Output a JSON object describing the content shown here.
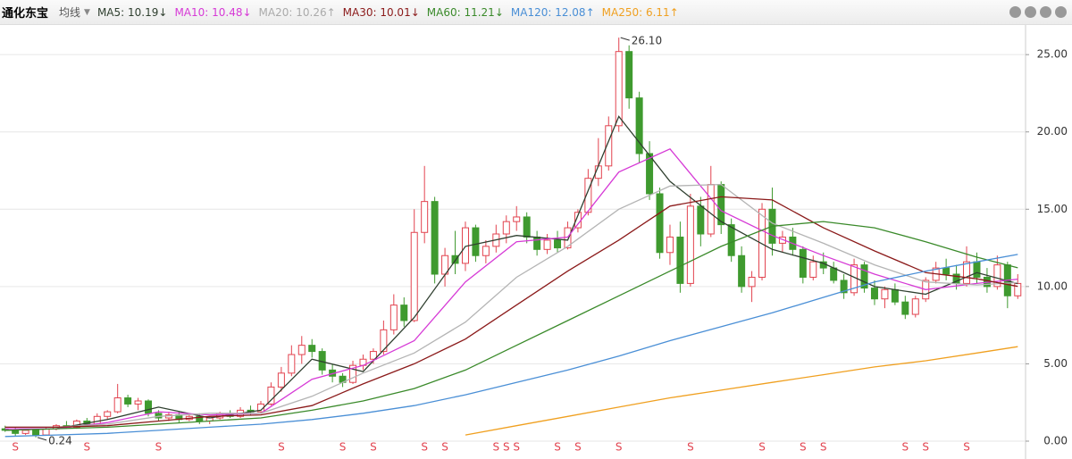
{
  "chart_data": {
    "type": "candlestick",
    "title": "通化东宝",
    "indicator": "均线",
    "ylim": [
      0,
      26.8
    ],
    "yticks": [
      {
        "value": 0,
        "label": "0.00"
      },
      {
        "value": 5,
        "label": "5.00"
      },
      {
        "value": 10,
        "label": "10.00"
      },
      {
        "value": 15,
        "label": "15.00"
      },
      {
        "value": 20,
        "label": "20.00"
      },
      {
        "value": 25,
        "label": "25.00"
      }
    ],
    "grid": true,
    "up_color": "#e2434f",
    "down_color": "#3f9a2f",
    "candles": [
      [
        0.8,
        1.0,
        0.6,
        0.7
      ],
      [
        0.7,
        0.9,
        0.3,
        0.5
      ],
      [
        0.5,
        0.8,
        0.4,
        0.7
      ],
      [
        0.7,
        0.8,
        0.24,
        0.4
      ],
      [
        0.4,
        0.9,
        0.4,
        0.8
      ],
      [
        0.8,
        1.1,
        0.7,
        1.0
      ],
      [
        1.0,
        1.3,
        0.8,
        0.9
      ],
      [
        0.9,
        1.4,
        0.8,
        1.3
      ],
      [
        1.3,
        1.5,
        1.0,
        1.1
      ],
      [
        1.1,
        1.8,
        1.0,
        1.6
      ],
      [
        1.6,
        2.0,
        1.4,
        1.9
      ],
      [
        1.9,
        3.7,
        1.8,
        2.8
      ],
      [
        2.8,
        3.0,
        2.2,
        2.4
      ],
      [
        2.4,
        2.8,
        2.0,
        2.6
      ],
      [
        2.6,
        2.7,
        1.6,
        1.8
      ],
      [
        1.8,
        2.0,
        1.3,
        1.5
      ],
      [
        1.5,
        1.9,
        1.3,
        1.7
      ],
      [
        1.7,
        1.9,
        1.2,
        1.4
      ],
      [
        1.4,
        1.8,
        1.3,
        1.6
      ],
      [
        1.6,
        1.8,
        1.1,
        1.3
      ],
      [
        1.3,
        1.6,
        1.1,
        1.5
      ],
      [
        1.5,
        1.9,
        1.4,
        1.8
      ],
      [
        1.8,
        2.0,
        1.5,
        1.6
      ],
      [
        1.6,
        2.2,
        1.5,
        2.0
      ],
      [
        2.0,
        2.3,
        1.7,
        1.9
      ],
      [
        1.9,
        2.6,
        1.8,
        2.4
      ],
      [
        2.4,
        3.8,
        2.3,
        3.5
      ],
      [
        3.5,
        4.8,
        3.2,
        4.4
      ],
      [
        4.4,
        6.2,
        4.2,
        5.6
      ],
      [
        5.6,
        6.8,
        5.0,
        6.2
      ],
      [
        6.2,
        6.6,
        5.4,
        5.8
      ],
      [
        5.8,
        6.0,
        4.3,
        4.6
      ],
      [
        4.6,
        5.0,
        3.8,
        4.2
      ],
      [
        4.2,
        4.4,
        3.5,
        3.8
      ],
      [
        3.8,
        5.2,
        3.7,
        4.9
      ],
      [
        4.9,
        5.6,
        4.6,
        5.3
      ],
      [
        5.3,
        6.0,
        5.0,
        5.8
      ],
      [
        5.8,
        7.8,
        5.6,
        7.2
      ],
      [
        7.2,
        9.5,
        6.9,
        8.8
      ],
      [
        8.8,
        9.3,
        7.4,
        7.8
      ],
      [
        7.8,
        15.0,
        7.7,
        13.5
      ],
      [
        13.5,
        17.8,
        12.8,
        15.5
      ],
      [
        15.5,
        15.8,
        10.2,
        10.8
      ],
      [
        10.8,
        12.5,
        10.0,
        12.0
      ],
      [
        12.0,
        13.6,
        10.8,
        11.5
      ],
      [
        11.5,
        14.2,
        11.0,
        13.8
      ],
      [
        13.8,
        14.0,
        11.6,
        12.0
      ],
      [
        12.0,
        13.0,
        11.5,
        12.6
      ],
      [
        12.6,
        14.0,
        12.2,
        13.4
      ],
      [
        13.4,
        14.6,
        12.8,
        14.2
      ],
      [
        14.2,
        15.2,
        13.6,
        14.5
      ],
      [
        14.5,
        14.8,
        12.8,
        13.2
      ],
      [
        13.2,
        13.6,
        12.0,
        12.4
      ],
      [
        12.4,
        13.4,
        12.1,
        13.0
      ],
      [
        13.0,
        13.6,
        12.2,
        12.5
      ],
      [
        12.5,
        14.2,
        12.4,
        13.8
      ],
      [
        13.8,
        15.0,
        13.5,
        14.8
      ],
      [
        14.8,
        17.6,
        14.6,
        17.0
      ],
      [
        17.0,
        19.6,
        16.5,
        17.8
      ],
      [
        17.8,
        21.0,
        17.5,
        20.4
      ],
      [
        20.4,
        26.1,
        20.0,
        25.2
      ],
      [
        25.2,
        25.6,
        21.5,
        22.2
      ],
      [
        22.2,
        22.6,
        18.0,
        18.6
      ],
      [
        18.6,
        19.4,
        15.6,
        16.0
      ],
      [
        16.0,
        16.4,
        11.8,
        12.2
      ],
      [
        12.2,
        14.0,
        11.4,
        13.2
      ],
      [
        13.2,
        14.2,
        9.6,
        10.2
      ],
      [
        10.2,
        16.0,
        10.0,
        15.2
      ],
      [
        15.2,
        15.8,
        12.6,
        13.4
      ],
      [
        13.4,
        17.8,
        13.2,
        16.6
      ],
      [
        16.6,
        16.8,
        13.4,
        14.0
      ],
      [
        14.0,
        14.4,
        11.6,
        12.0
      ],
      [
        12.0,
        12.6,
        9.6,
        10.0
      ],
      [
        10.0,
        11.0,
        9.0,
        10.6
      ],
      [
        10.6,
        15.4,
        10.4,
        15.0
      ],
      [
        15.0,
        16.4,
        12.0,
        12.8
      ],
      [
        12.8,
        13.6,
        12.2,
        13.2
      ],
      [
        13.2,
        13.8,
        12.0,
        12.4
      ],
      [
        12.4,
        12.6,
        10.2,
        10.6
      ],
      [
        10.6,
        12.0,
        10.4,
        11.6
      ],
      [
        11.6,
        12.2,
        10.8,
        11.2
      ],
      [
        11.2,
        11.6,
        10.2,
        10.4
      ],
      [
        10.4,
        10.8,
        9.2,
        9.6
      ],
      [
        9.6,
        11.8,
        9.4,
        11.4
      ],
      [
        11.4,
        11.6,
        9.6,
        9.9
      ],
      [
        9.9,
        10.4,
        8.8,
        9.2
      ],
      [
        9.2,
        10.0,
        8.6,
        9.8
      ],
      [
        9.8,
        10.2,
        8.8,
        9.0
      ],
      [
        9.0,
        9.4,
        7.9,
        8.2
      ],
      [
        8.2,
        9.4,
        8.0,
        9.2
      ],
      [
        9.2,
        10.6,
        9.0,
        10.4
      ],
      [
        10.4,
        11.6,
        10.2,
        11.2
      ],
      [
        11.2,
        11.8,
        10.4,
        10.8
      ],
      [
        10.8,
        11.4,
        9.8,
        10.2
      ],
      [
        10.2,
        12.6,
        10.0,
        11.6
      ],
      [
        11.6,
        12.2,
        10.2,
        10.6
      ],
      [
        10.6,
        11.2,
        9.6,
        10.0
      ],
      [
        10.0,
        12.0,
        9.8,
        11.4
      ],
      [
        11.4,
        11.6,
        8.6,
        9.4
      ],
      [
        9.4,
        10.8,
        9.2,
        10.2
      ]
    ],
    "x": [
      0,
      5,
      10,
      15,
      20,
      25,
      30,
      35,
      40,
      45,
      50,
      55,
      60,
      65,
      70,
      75,
      80,
      85,
      90,
      95,
      99
    ],
    "series": [
      {
        "name": "MA5",
        "legend_label": "MA5: 10.19",
        "arrow": "↓",
        "color": "#2f3f2f",
        "values": [
          0.7,
          0.8,
          1.4,
          2.2,
          1.5,
          2.0,
          5.3,
          4.5,
          8.0,
          12.6,
          13.3,
          13.0,
          21.0,
          16.8,
          14.2,
          12.4,
          11.5,
          10.0,
          9.5,
          10.9,
          10.19
        ]
      },
      {
        "name": "MA10",
        "legend_label": "MA10: 10.48",
        "arrow": "↓",
        "color": "#d63ad6",
        "values": [
          0.8,
          0.8,
          1.2,
          1.9,
          1.7,
          1.8,
          4.0,
          4.9,
          6.5,
          10.3,
          12.9,
          13.2,
          17.4,
          18.9,
          14.9,
          13.3,
          12.0,
          10.8,
          9.8,
          10.2,
          10.48
        ]
      },
      {
        "name": "MA20",
        "legend_label": "MA20: 10.26",
        "arrow": "↑",
        "color": "#b4b4b4",
        "values": [
          0.9,
          0.9,
          1.1,
          1.6,
          1.8,
          1.8,
          2.9,
          4.4,
          5.7,
          7.7,
          10.6,
          12.6,
          15.0,
          16.5,
          16.6,
          14.1,
          12.8,
          11.4,
          10.3,
          10.1,
          10.26
        ]
      },
      {
        "name": "MA30",
        "legend_label": "MA30: 10.01",
        "arrow": "↓",
        "color": "#8b1a1a",
        "values": [
          0.9,
          0.9,
          1.0,
          1.3,
          1.6,
          1.7,
          2.3,
          3.7,
          5.0,
          6.6,
          8.8,
          11.0,
          13.0,
          15.2,
          15.8,
          15.6,
          13.8,
          12.3,
          10.9,
          10.5,
          10.01
        ]
      },
      {
        "name": "MA60",
        "legend_label": "MA60: 11.21",
        "arrow": "↓",
        "color": "#3a8a2a",
        "values": [
          0.7,
          0.8,
          0.9,
          1.1,
          1.3,
          1.5,
          2.0,
          2.6,
          3.4,
          4.6,
          6.2,
          7.8,
          9.4,
          11.0,
          12.6,
          13.9,
          14.2,
          13.8,
          12.9,
          11.9,
          11.21
        ]
      },
      {
        "name": "MA120",
        "legend_label": "MA120: 12.08",
        "arrow": "↑",
        "color": "#4a8fd6",
        "values": [
          0.3,
          0.4,
          0.5,
          0.7,
          0.9,
          1.1,
          1.4,
          1.8,
          2.3,
          3.0,
          3.8,
          4.6,
          5.5,
          6.5,
          7.4,
          8.3,
          9.3,
          10.3,
          11.0,
          11.6,
          12.08
        ]
      },
      {
        "name": "MA250",
        "legend_label": "MA250: 6.11",
        "arrow": "↑",
        "color": "#f0a020",
        "values": [
          null,
          null,
          null,
          null,
          null,
          null,
          null,
          null,
          null,
          0.4,
          1.0,
          1.6,
          2.2,
          2.8,
          3.3,
          3.8,
          4.3,
          4.8,
          5.2,
          5.7,
          6.11
        ]
      }
    ],
    "annotations": [
      {
        "label": "26.10",
        "x": 60,
        "y": 26.1
      },
      {
        "label": "0.24",
        "x": 3,
        "y": 0.24
      }
    ],
    "signals": {
      "label": "S",
      "x": [
        1,
        8,
        15,
        27,
        33,
        36,
        41,
        43,
        48,
        49,
        50,
        54,
        56,
        60,
        67,
        74,
        78,
        80,
        88,
        90,
        94
      ]
    }
  }
}
